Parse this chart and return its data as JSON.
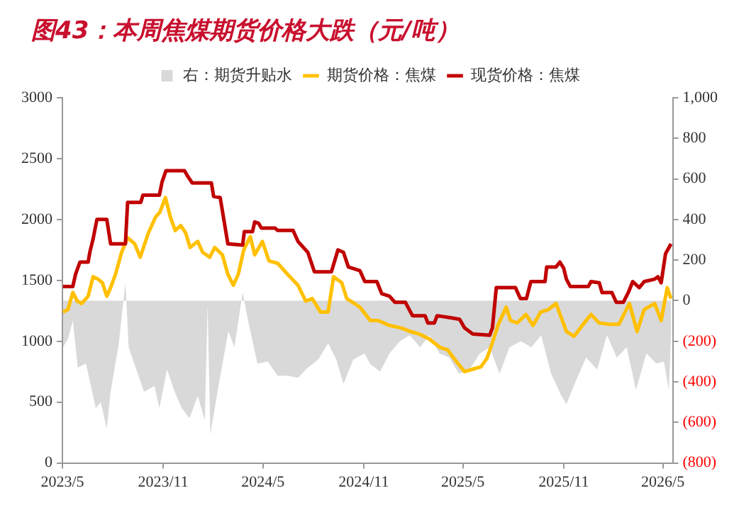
{
  "chart_data": {
    "type": "line",
    "title": "图43：本周焦煤期货价格大跌（元/吨）",
    "legend": "top",
    "grid": false,
    "xlim": [
      "2023-05",
      "2026-05-19"
    ],
    "xticks": [
      {
        "value": "2023-05",
        "label": "2023/5"
      },
      {
        "value": "2023-11",
        "label": "2023/11"
      },
      {
        "value": "2024-05",
        "label": "2024/5"
      },
      {
        "value": "2024-11",
        "label": "2024/11"
      },
      {
        "value": "2025-05",
        "label": "2025/5"
      },
      {
        "value": "2025-11",
        "label": "2025/11"
      },
      {
        "value": "2026-05",
        "label": "2026/5"
      }
    ],
    "ylim": [
      0,
      3000
    ],
    "yticks": [
      0,
      500,
      1000,
      1500,
      2000,
      2500,
      3000
    ],
    "y2lim": [
      -800,
      1000
    ],
    "y2ticks": [
      {
        "value": -800,
        "label": "(800)"
      },
      {
        "value": -600,
        "label": "(600)"
      },
      {
        "value": -400,
        "label": "(400)"
      },
      {
        "value": -200,
        "label": "(200)"
      },
      0,
      {
        "value": 200,
        "label": "200"
      },
      {
        "value": 400,
        "label": "400"
      },
      {
        "value": 600,
        "label": "600"
      },
      {
        "value": 800,
        "label": "800"
      },
      {
        "value": 1000,
        "label": "1,000"
      }
    ],
    "series": [
      {
        "name": "右：期货升贴水",
        "type": "area",
        "axis": "y2",
        "color": "#d9d9d9",
        "x": [
          "2023-05-02",
          "2023-05-11",
          "2023-05-20",
          "2023-05-29",
          "2023-06-13",
          "2023-07-01",
          "2023-07-10",
          "2023-07-21",
          "2023-07-28",
          "2023-08-12",
          "2023-08-24",
          "2023-08-30",
          "2023-09-13",
          "2023-09-27",
          "2023-10-16",
          "2023-10-25",
          "2023-11-08",
          "2023-11-22",
          "2023-12-05",
          "2023-12-19",
          "2024-01-03",
          "2024-01-16",
          "2024-01-21",
          "2024-01-26",
          "2024-02-10",
          "2024-02-28",
          "2024-03-10",
          "2024-03-25",
          "2024-04-04",
          "2024-04-21",
          "2024-05-10",
          "2024-05-28",
          "2024-06-16",
          "2024-07-04",
          "2024-07-22",
          "2024-08-10",
          "2024-08-28",
          "2024-09-12",
          "2024-09-25",
          "2024-10-13",
          "2024-11-03",
          "2024-11-12",
          "2024-12-01",
          "2024-12-18",
          "2025-01-06",
          "2025-01-24",
          "2025-02-12",
          "2025-03-01",
          "2025-03-19",
          "2025-04-06",
          "2025-04-24",
          "2025-05-13",
          "2025-06-01",
          "2025-06-19",
          "2025-07-07",
          "2025-07-25",
          "2025-08-15",
          "2025-09-03",
          "2025-09-21",
          "2025-10-09",
          "2025-10-28",
          "2025-11-06",
          "2025-11-24",
          "2025-12-12",
          "2026-01-01",
          "2026-01-19",
          "2026-02-06",
          "2026-02-24",
          "2026-03-13",
          "2026-04-01",
          "2026-04-19",
          "2026-05-03",
          "2026-05-12",
          "2026-05-16"
        ],
        "values": [
          -230,
          -190,
          -100,
          -330,
          -310,
          -530,
          -500,
          -630,
          -450,
          -210,
          90,
          -230,
          -340,
          -450,
          -420,
          -530,
          -340,
          -450,
          -530,
          -580,
          -470,
          -590,
          -20,
          -660,
          -420,
          -150,
          -230,
          40,
          -100,
          -310,
          -300,
          -370,
          -370,
          -380,
          -330,
          -290,
          -210,
          -290,
          -410,
          -290,
          -260,
          -310,
          -350,
          -260,
          -200,
          -170,
          -230,
          -170,
          -260,
          -280,
          -360,
          -340,
          -260,
          -230,
          -360,
          -230,
          -200,
          -230,
          -170,
          -360,
          -470,
          -510,
          -390,
          -280,
          -340,
          -170,
          -280,
          -230,
          -440,
          -260,
          -310,
          -300,
          -440,
          -170
        ]
      },
      {
        "name": "期货价格：焦煤",
        "color": "#ffc000",
        "x": [
          "2023-05-02",
          "2023-05-11",
          "2023-05-20",
          "2023-05-28",
          "2023-06-05",
          "2023-06-17",
          "2023-06-26",
          "2023-07-05",
          "2023-07-13",
          "2023-07-21",
          "2023-07-28",
          "2023-08-06",
          "2023-08-17",
          "2023-08-28",
          "2023-09-10",
          "2023-09-20",
          "2023-10-05",
          "2023-10-18",
          "2023-10-26",
          "2023-11-05",
          "2023-11-14",
          "2023-11-23",
          "2023-12-03",
          "2023-12-12",
          "2023-12-20",
          "2024-01-03",
          "2024-01-12",
          "2024-01-25",
          "2024-02-03",
          "2024-02-17",
          "2024-02-27",
          "2024-03-08",
          "2024-03-17",
          "2024-03-27",
          "2024-04-08",
          "2024-04-16",
          "2024-04-30",
          "2024-05-12",
          "2024-05-28",
          "2024-06-15",
          "2024-07-04",
          "2024-07-18",
          "2024-07-30",
          "2024-08-14",
          "2024-08-28",
          "2024-09-07",
          "2024-09-22",
          "2024-10-01",
          "2024-10-15",
          "2024-10-25",
          "2024-11-13",
          "2024-11-27",
          "2024-12-18",
          "2025-01-08",
          "2025-01-25",
          "2025-02-10",
          "2025-02-28",
          "2025-03-20",
          "2025-04-03",
          "2025-04-18",
          "2025-05-04",
          "2025-05-19",
          "2025-06-03",
          "2025-06-14",
          "2025-06-24",
          "2025-07-04",
          "2025-07-19",
          "2025-07-27",
          "2025-08-08",
          "2025-08-24",
          "2025-09-06",
          "2025-09-20",
          "2025-10-04",
          "2025-10-18",
          "2025-11-06",
          "2025-11-20",
          "2025-12-05",
          "2025-12-21",
          "2026-01-05",
          "2026-01-23",
          "2026-02-10",
          "2026-03-01",
          "2026-03-15",
          "2026-03-28",
          "2026-04-16",
          "2026-04-28",
          "2026-05-09",
          "2026-05-16"
        ],
        "values": [
          1240,
          1260,
          1400,
          1330,
          1310,
          1370,
          1530,
          1510,
          1480,
          1370,
          1440,
          1550,
          1730,
          1850,
          1800,
          1690,
          1890,
          2020,
          2060,
          2180,
          2020,
          1910,
          1950,
          1890,
          1770,
          1820,
          1730,
          1690,
          1770,
          1710,
          1550,
          1460,
          1550,
          1750,
          1860,
          1710,
          1820,
          1660,
          1640,
          1550,
          1460,
          1330,
          1350,
          1240,
          1240,
          1530,
          1480,
          1350,
          1310,
          1280,
          1170,
          1170,
          1130,
          1110,
          1080,
          1060,
          1020,
          950,
          930,
          840,
          750,
          770,
          790,
          860,
          990,
          1130,
          1280,
          1170,
          1150,
          1220,
          1130,
          1240,
          1260,
          1310,
          1080,
          1040,
          1130,
          1220,
          1150,
          1140,
          1140,
          1310,
          1080,
          1260,
          1310,
          1170,
          1440,
          1350
        ]
      },
      {
        "name": "现货价格：焦煤",
        "color": "#c00000",
        "x": [
          "2023-05-02",
          "2023-05-20",
          "2023-05-25",
          "2023-06-02",
          "2023-06-17",
          "2023-06-20",
          "2023-06-26",
          "2023-07-03",
          "2023-07-21",
          "2023-07-28",
          "2023-08-24",
          "2023-08-28",
          "2023-09-21",
          "2023-09-25",
          "2023-10-25",
          "2023-10-30",
          "2023-11-06",
          "2023-12-10",
          "2023-12-15",
          "2023-12-24",
          "2024-01-28",
          "2024-02-01",
          "2024-02-13",
          "2024-02-27",
          "2024-03-25",
          "2024-03-28",
          "2024-04-12",
          "2024-04-16",
          "2024-04-23",
          "2024-04-28",
          "2024-05-23",
          "2024-05-28",
          "2024-06-25",
          "2024-07-04",
          "2024-07-22",
          "2024-08-03",
          "2024-09-03",
          "2024-09-15",
          "2024-09-25",
          "2024-10-04",
          "2024-10-25",
          "2024-11-03",
          "2024-11-25",
          "2024-12-04",
          "2024-12-18",
          "2024-12-28",
          "2025-01-16",
          "2025-01-29",
          "2025-02-21",
          "2025-02-26",
          "2025-03-10",
          "2025-03-15",
          "2025-04-12",
          "2025-04-25",
          "2025-05-04",
          "2025-05-19",
          "2025-06-19",
          "2025-06-24",
          "2025-07-01",
          "2025-08-05",
          "2025-08-14",
          "2025-08-25",
          "2025-09-02",
          "2025-09-28",
          "2025-10-01",
          "2025-10-18",
          "2025-10-25",
          "2025-11-01",
          "2025-11-06",
          "2025-11-13",
          "2025-12-16",
          "2025-12-21",
          "2026-01-05",
          "2026-01-10",
          "2026-01-28",
          "2026-02-05",
          "2026-02-18",
          "2026-02-27",
          "2026-03-07",
          "2026-03-19",
          "2026-03-28",
          "2026-04-16",
          "2026-04-22",
          "2026-04-28",
          "2026-05-06",
          "2026-05-16"
        ],
        "values": [
          1450,
          1450,
          1550,
          1650,
          1650,
          1730,
          1840,
          2000,
          2000,
          1800,
          1800,
          2140,
          2140,
          2200,
          2200,
          2310,
          2400,
          2400,
          2360,
          2300,
          2300,
          2190,
          2180,
          1800,
          1790,
          1900,
          1900,
          1980,
          1970,
          1930,
          1930,
          1910,
          1910,
          1820,
          1730,
          1570,
          1570,
          1750,
          1730,
          1610,
          1580,
          1490,
          1490,
          1390,
          1370,
          1320,
          1320,
          1210,
          1210,
          1150,
          1150,
          1210,
          1190,
          1180,
          1110,
          1060,
          1050,
          1110,
          1440,
          1440,
          1350,
          1350,
          1490,
          1490,
          1610,
          1610,
          1650,
          1600,
          1510,
          1450,
          1450,
          1490,
          1480,
          1400,
          1400,
          1320,
          1320,
          1400,
          1490,
          1440,
          1490,
          1510,
          1530,
          1480,
          1720,
          1800
        ]
      }
    ]
  }
}
